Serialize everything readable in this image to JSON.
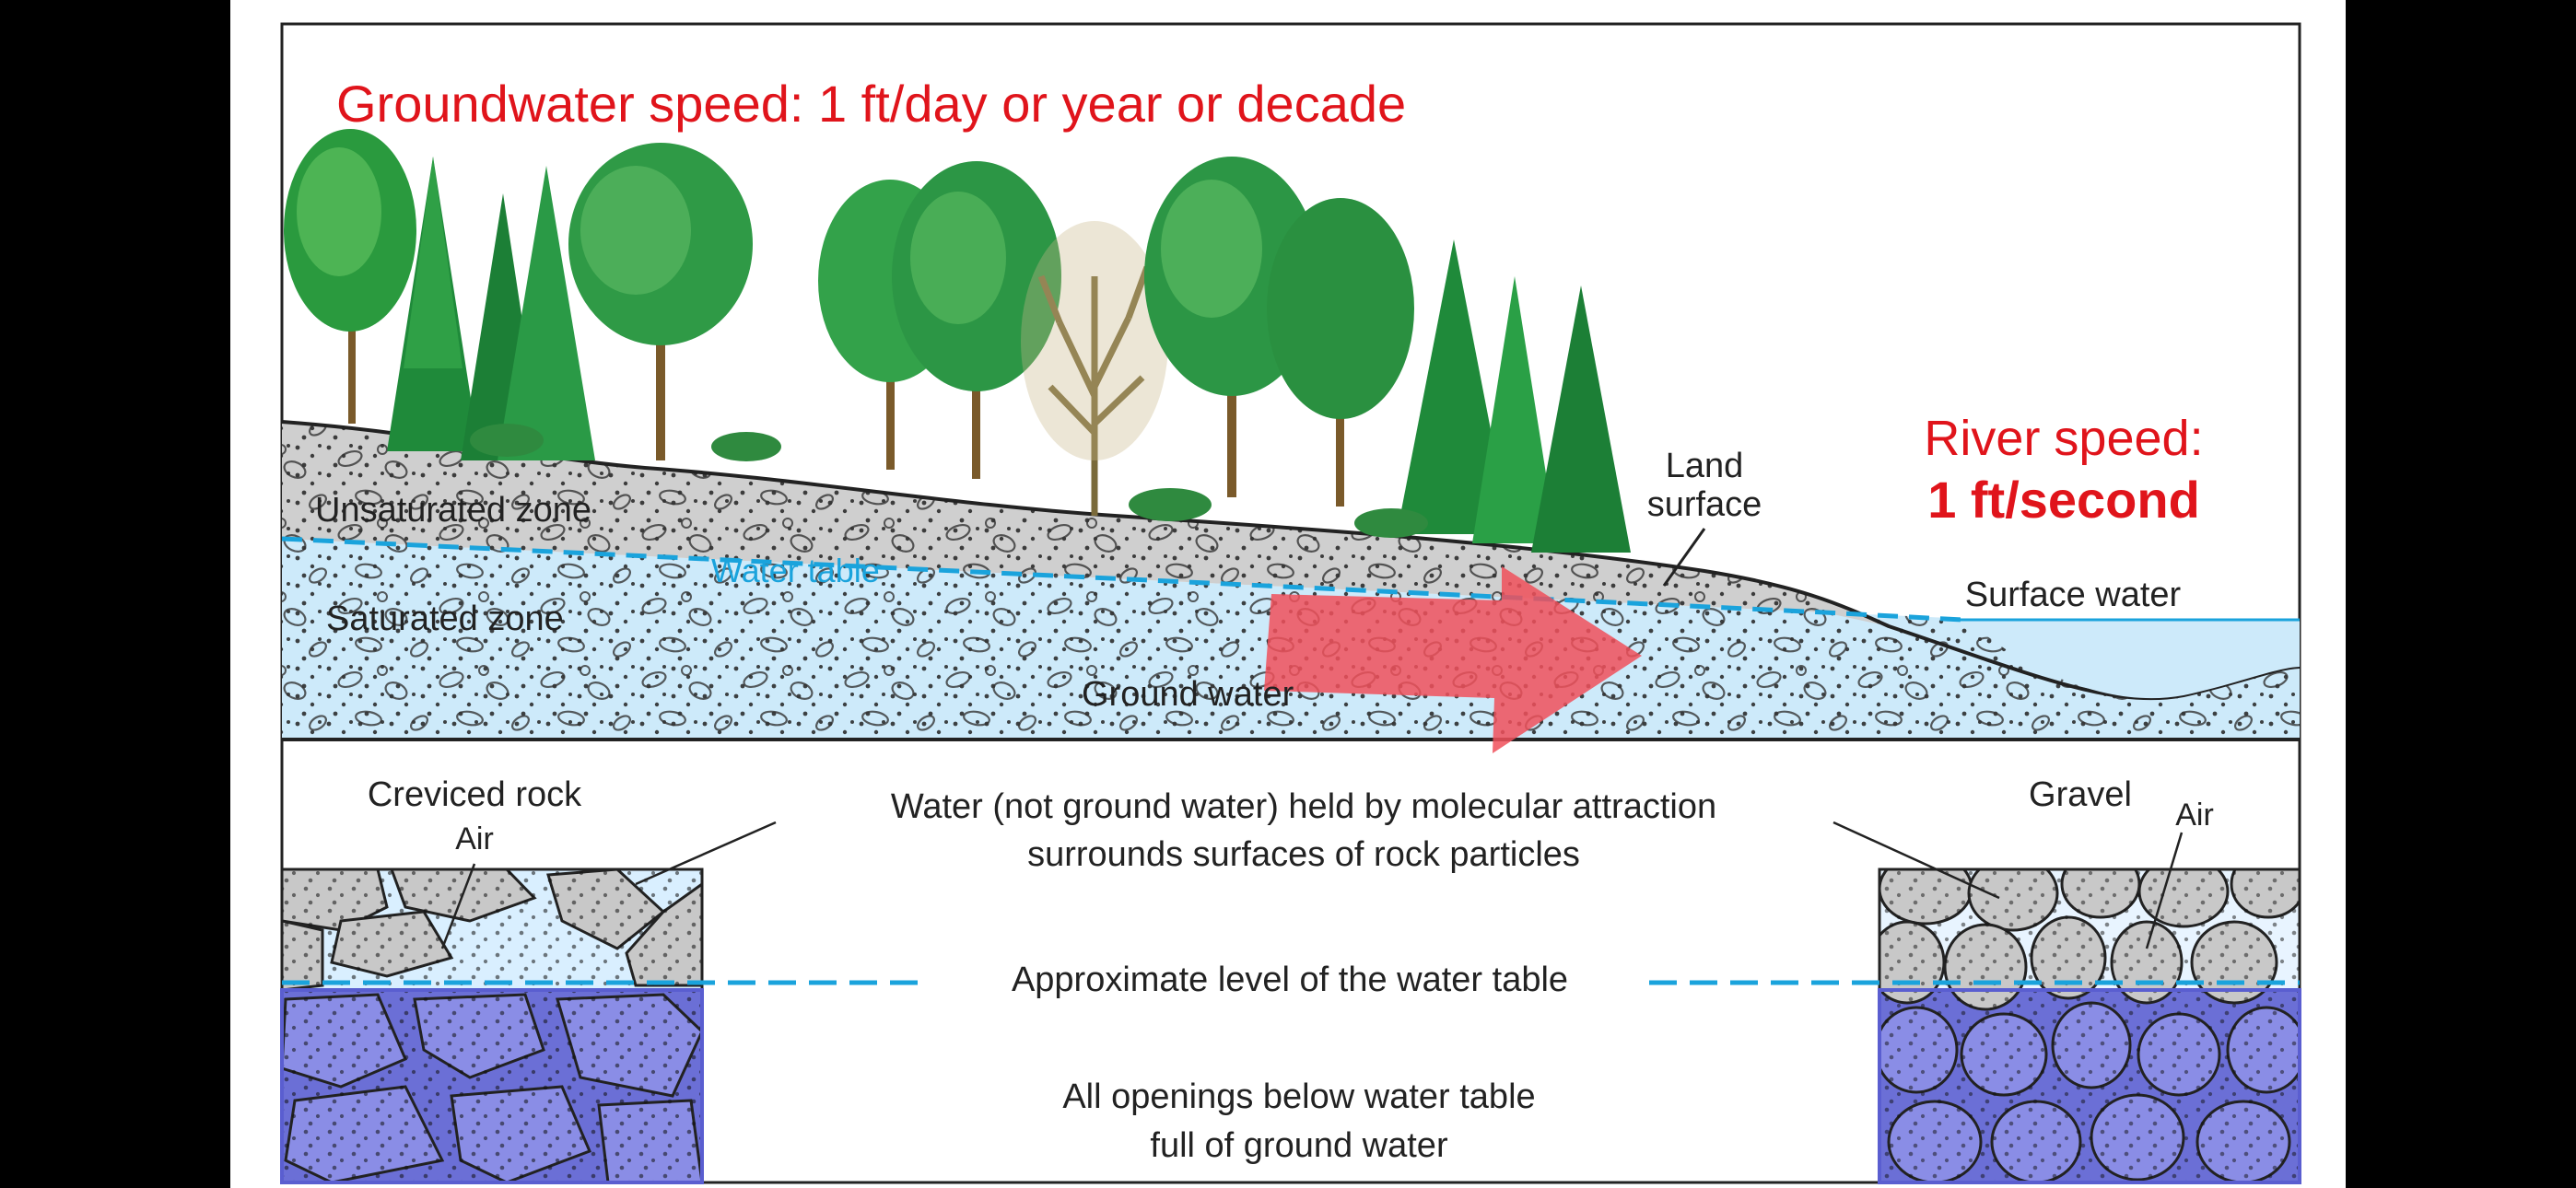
{
  "slide": {
    "title": "Groundwater speed: 1 ft/day or year or decade",
    "river_label_line1": "River speed:",
    "river_label_line2": "1 ft/second"
  },
  "cross_section": {
    "land_surface_line1": "Land",
    "land_surface_line2": "surface",
    "unsaturated_zone": "Unsaturated zone",
    "water_table": "Water table",
    "saturated_zone": "Saturated zone",
    "ground_water": "Ground water",
    "surface_water": "Surface water"
  },
  "detail": {
    "creviced_rock": "Creviced rock",
    "air_left": "Air",
    "gravel": "Gravel",
    "air_right": "Air",
    "molecular_line1": "Water (not ground water) held by molecular attraction",
    "molecular_line2": "surrounds surfaces of rock particles",
    "water_table_level": "Approximate level of the water table",
    "openings_line1": "All openings below water table",
    "openings_line2": "full of ground water"
  },
  "colors": {
    "title_red": "#e0141b",
    "water_table_blue": "#1aa3dc",
    "saturated_fill": "#cdeafa",
    "unsaturated_fill": "#cfcfcf",
    "flow_arrow": "#f0505a",
    "saturated_rock_fill": "#6b6fd6"
  }
}
